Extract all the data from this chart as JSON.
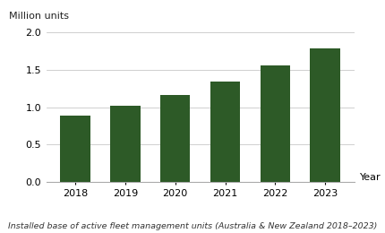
{
  "years": [
    "2018",
    "2019",
    "2020",
    "2021",
    "2022",
    "2023"
  ],
  "values": [
    0.89,
    1.02,
    1.16,
    1.34,
    1.56,
    1.79
  ],
  "bar_color": "#2d5a27",
  "ylabel_above": "Million units",
  "xlabel": "Year",
  "ylim": [
    0,
    2.0
  ],
  "yticks": [
    0.0,
    0.5,
    1.0,
    1.5,
    2.0
  ],
  "caption": "Installed base of active fleet management units (Australia & New Zealand 2018–2023)",
  "background_color": "#ffffff",
  "grid_color": "#c8c8c8"
}
